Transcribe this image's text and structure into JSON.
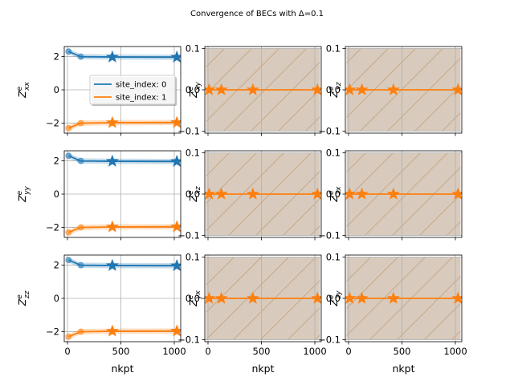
{
  "figure": {
    "suptitle": "Convergence of BECs with Δ=0.1",
    "colors": {
      "series0": "#1f77b4",
      "series1": "#ff7f0e",
      "grid": "#b0b0b0",
      "hatch_face": "#d8cbbd",
      "hatch_line": "#c8a887"
    }
  },
  "chart_data": [
    {
      "type": "line",
      "ylabel_base": "Z",
      "ylabel_sup": "e",
      "ylabel_sub": "xx",
      "xlabel": "",
      "xlim": [
        -30,
        1060
      ],
      "ylim": [
        -2.6,
        2.6
      ],
      "yticks": [
        "2",
        "0",
        "−2"
      ],
      "ytick_values": [
        2,
        0,
        -2
      ],
      "xticks": [],
      "xtick_values": [
        0,
        500,
        1000
      ],
      "grid": true,
      "hatched": false,
      "legend": {
        "placement": "center-right",
        "entries": [
          "site_index: 0",
          "site_index: 1"
        ]
      },
      "series": [
        {
          "x": [
            10,
            125,
            420,
            1024
          ],
          "values": [
            2.3,
            1.99,
            1.97,
            1.96
          ],
          "band": [
            0.16,
            0.16,
            0.16,
            0.16
          ],
          "markers": [
            2,
            3
          ]
        },
        {
          "x": [
            10,
            125,
            420,
            1024
          ],
          "values": [
            -2.3,
            -2.0,
            -1.97,
            -1.96
          ],
          "band": [
            0.16,
            0.16,
            0.16,
            0.16
          ],
          "markers": [
            2,
            3
          ]
        }
      ]
    },
    {
      "type": "line",
      "ylabel_base": "Z",
      "ylabel_sup": "e",
      "ylabel_sub": "xy",
      "xlabel": "",
      "xlim": [
        -30,
        1060
      ],
      "ylim": [
        -0.105,
        0.105
      ],
      "yticks": [
        "0.1",
        "0.0",
        "−0.1"
      ],
      "ytick_values": [
        0.1,
        0,
        -0.1
      ],
      "xticks": [],
      "xtick_values": [
        0,
        500,
        1000
      ],
      "grid": true,
      "hatched": true,
      "series": [
        {
          "x": [
            10,
            125,
            420,
            1024
          ],
          "values": [
            0,
            0,
            0,
            0
          ],
          "markers": [
            0,
            1,
            2,
            3
          ]
        }
      ]
    },
    {
      "type": "line",
      "ylabel_base": "Z",
      "ylabel_sup": "e",
      "ylabel_sub": "xz",
      "xlabel": "",
      "xlim": [
        -30,
        1060
      ],
      "ylim": [
        -0.105,
        0.105
      ],
      "yticks": [
        "0.1",
        "0.0",
        "−0.1"
      ],
      "ytick_values": [
        0.1,
        0,
        -0.1
      ],
      "xticks": [],
      "xtick_values": [
        0,
        500,
        1000
      ],
      "grid": true,
      "hatched": true,
      "series": [
        {
          "x": [
            10,
            125,
            420,
            1024
          ],
          "values": [
            0,
            0,
            0,
            0
          ],
          "markers": [
            0,
            1,
            2,
            3
          ]
        }
      ]
    },
    {
      "type": "line",
      "ylabel_base": "Z",
      "ylabel_sup": "e",
      "ylabel_sub": "yy",
      "xlabel": "",
      "xlim": [
        -30,
        1060
      ],
      "ylim": [
        -2.6,
        2.6
      ],
      "yticks": [
        "2",
        "0",
        "−2"
      ],
      "ytick_values": [
        2,
        0,
        -2
      ],
      "xticks": [],
      "xtick_values": [
        0,
        500,
        1000
      ],
      "grid": true,
      "hatched": false,
      "series": [
        {
          "x": [
            10,
            125,
            420,
            1024
          ],
          "values": [
            2.3,
            1.99,
            1.97,
            1.96
          ],
          "band": [
            0.16,
            0.16,
            0.16,
            0.16
          ],
          "markers": [
            2,
            3
          ]
        },
        {
          "x": [
            10,
            125,
            420,
            1024
          ],
          "values": [
            -2.3,
            -2.0,
            -1.97,
            -1.96
          ],
          "band": [
            0.16,
            0.16,
            0.16,
            0.16
          ],
          "markers": [
            2,
            3
          ]
        }
      ]
    },
    {
      "type": "line",
      "ylabel_base": "Z",
      "ylabel_sup": "e",
      "ylabel_sub": "xz",
      "xlabel": "",
      "xlim": [
        -30,
        1060
      ],
      "ylim": [
        -0.105,
        0.105
      ],
      "yticks": [
        "0.1",
        "0.0",
        "−0.1"
      ],
      "ytick_values": [
        0.1,
        0,
        -0.1
      ],
      "xticks": [],
      "xtick_values": [
        0,
        500,
        1000
      ],
      "grid": true,
      "hatched": true,
      "series": [
        {
          "x": [
            10,
            125,
            420,
            1024
          ],
          "values": [
            0,
            0,
            0,
            0
          ],
          "markers": [
            0,
            1,
            2,
            3
          ]
        }
      ]
    },
    {
      "type": "line",
      "ylabel_base": "Z",
      "ylabel_sup": "e",
      "ylabel_sub": "zx",
      "xlabel": "",
      "xlim": [
        -30,
        1060
      ],
      "ylim": [
        -0.105,
        0.105
      ],
      "yticks": [
        "0.1",
        "0.0",
        "−0.1"
      ],
      "ytick_values": [
        0.1,
        0,
        -0.1
      ],
      "xticks": [],
      "xtick_values": [
        0,
        500,
        1000
      ],
      "grid": true,
      "hatched": true,
      "series": [
        {
          "x": [
            10,
            125,
            420,
            1024
          ],
          "values": [
            0,
            0,
            0,
            0
          ],
          "markers": [
            0,
            1,
            2,
            3
          ]
        }
      ]
    },
    {
      "type": "line",
      "ylabel_base": "Z",
      "ylabel_sup": "e",
      "ylabel_sub": "zz",
      "xlabel": "nkpt",
      "xlim": [
        -30,
        1060
      ],
      "ylim": [
        -2.6,
        2.6
      ],
      "yticks": [
        "2",
        "0",
        "−2"
      ],
      "ytick_values": [
        2,
        0,
        -2
      ],
      "xticks": [
        "0",
        "500",
        "1000"
      ],
      "xtick_values": [
        0,
        500,
        1000
      ],
      "grid": true,
      "hatched": false,
      "series": [
        {
          "x": [
            10,
            125,
            420,
            1024
          ],
          "values": [
            2.3,
            1.99,
            1.97,
            1.96
          ],
          "band": [
            0.16,
            0.16,
            0.16,
            0.16
          ],
          "markers": [
            2,
            3
          ]
        },
        {
          "x": [
            10,
            125,
            420,
            1024
          ],
          "values": [
            -2.3,
            -2.0,
            -1.97,
            -1.96
          ],
          "band": [
            0.16,
            0.16,
            0.16,
            0.16
          ],
          "markers": [
            2,
            3
          ]
        }
      ]
    },
    {
      "type": "line",
      "ylabel_base": "Z",
      "ylabel_sup": "e",
      "ylabel_sub": "yx",
      "xlabel": "nkpt",
      "xlim": [
        -30,
        1060
      ],
      "ylim": [
        -0.105,
        0.105
      ],
      "yticks": [
        "0.1",
        "0.0",
        "−0.1"
      ],
      "ytick_values": [
        0.1,
        0,
        -0.1
      ],
      "xticks": [
        "0",
        "500",
        "1000"
      ],
      "xtick_values": [
        0,
        500,
        1000
      ],
      "grid": true,
      "hatched": true,
      "series": [
        {
          "x": [
            10,
            125,
            420,
            1024
          ],
          "values": [
            0,
            0,
            0,
            0
          ],
          "markers": [
            0,
            1,
            2,
            3
          ]
        }
      ]
    },
    {
      "type": "line",
      "ylabel_base": "Z",
      "ylabel_sup": "e",
      "ylabel_sub": "zy",
      "xlabel": "nkpt",
      "xlim": [
        -30,
        1060
      ],
      "ylim": [
        -0.105,
        0.105
      ],
      "yticks": [
        "0.1",
        "0.0",
        "−0.1"
      ],
      "ytick_values": [
        0.1,
        0,
        -0.1
      ],
      "xticks": [
        "0",
        "500",
        "1000"
      ],
      "xtick_values": [
        0,
        500,
        1000
      ],
      "grid": true,
      "hatched": true,
      "series": [
        {
          "x": [
            10,
            125,
            420,
            1024
          ],
          "values": [
            0,
            0,
            0,
            0
          ],
          "markers": [
            0,
            1,
            2,
            3
          ]
        }
      ]
    }
  ]
}
